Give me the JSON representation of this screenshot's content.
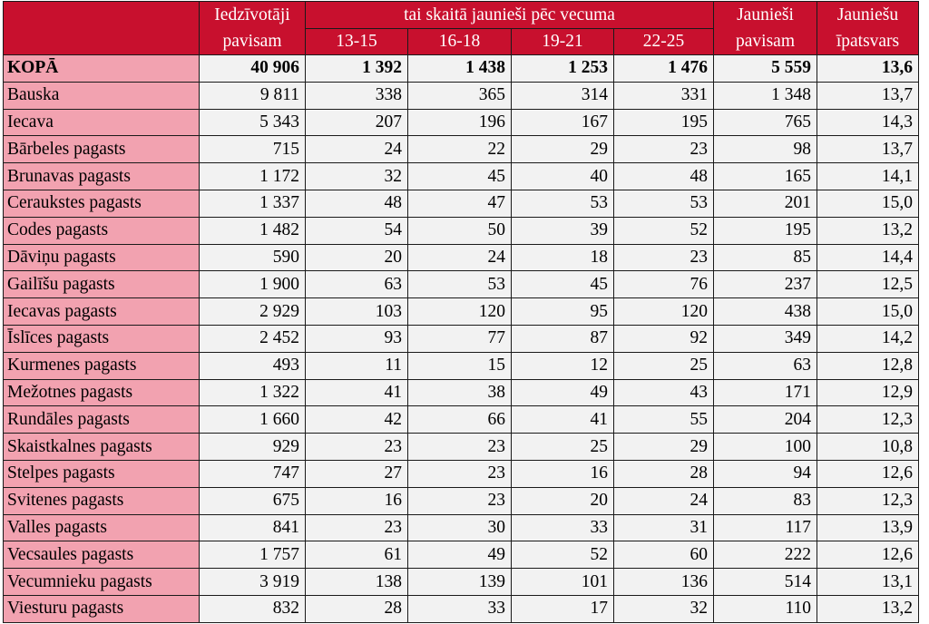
{
  "header": {
    "col_population": [
      "Iedzīvotāji",
      "pavisam"
    ],
    "group_label": "tai skaitā jaunieši pēc vecuma",
    "age_groups": [
      "13-15",
      "16-18",
      "19-21",
      "22-25"
    ],
    "col_youth_total": [
      "Jaunieši",
      "pavisam"
    ],
    "col_youth_share": [
      "Jauniešu",
      "īpatsvars"
    ]
  },
  "total_row": [
    "KOPĀ",
    "40 906",
    "1 392",
    "1 438",
    "1 253",
    "1 476",
    "5 559",
    "13,6"
  ],
  "rows": [
    [
      "Bauska",
      "9 811",
      "338",
      "365",
      "314",
      "331",
      "1 348",
      "13,7"
    ],
    [
      "Iecava",
      "5 343",
      "207",
      "196",
      "167",
      "195",
      "765",
      "14,3"
    ],
    [
      "Bārbeles pagasts",
      "715",
      "24",
      "22",
      "29",
      "23",
      "98",
      "13,7"
    ],
    [
      "Brunavas pagasts",
      "1 172",
      "32",
      "45",
      "40",
      "48",
      "165",
      "14,1"
    ],
    [
      "Ceraukstes pagasts",
      "1 337",
      "48",
      "47",
      "53",
      "53",
      "201",
      "15,0"
    ],
    [
      "Codes pagasts",
      "1 482",
      "54",
      "50",
      "39",
      "52",
      "195",
      "13,2"
    ],
    [
      "Dāviņu pagasts",
      "590",
      "20",
      "24",
      "18",
      "23",
      "85",
      "14,4"
    ],
    [
      "Gailīšu pagasts",
      "1 900",
      "63",
      "53",
      "45",
      "76",
      "237",
      "12,5"
    ],
    [
      "Iecavas pagasts",
      "2 929",
      "103",
      "120",
      "95",
      "120",
      "438",
      "15,0"
    ],
    [
      "Īslīces pagasts",
      "2 452",
      "93",
      "77",
      "87",
      "92",
      "349",
      "14,2"
    ],
    [
      "Kurmenes pagasts",
      "493",
      "11",
      "15",
      "12",
      "25",
      "63",
      "12,8"
    ],
    [
      "Mežotnes pagasts",
      "1 322",
      "41",
      "38",
      "49",
      "43",
      "171",
      "12,9"
    ],
    [
      "Rundāles pagasts",
      "1 660",
      "42",
      "66",
      "41",
      "55",
      "204",
      "12,3"
    ],
    [
      "Skaistkalnes pagasts",
      "929",
      "23",
      "23",
      "25",
      "29",
      "100",
      "10,8"
    ],
    [
      "Stelpes pagasts",
      "747",
      "27",
      "23",
      "16",
      "28",
      "94",
      "12,6"
    ],
    [
      "Svitenes pagasts",
      "675",
      "16",
      "23",
      "20",
      "24",
      "83",
      "12,3"
    ],
    [
      "Valles pagasts",
      "841",
      "23",
      "30",
      "33",
      "31",
      "117",
      "13,9"
    ],
    [
      "Vecsaules pagasts",
      "1 757",
      "61",
      "49",
      "52",
      "60",
      "222",
      "12,6"
    ],
    [
      "Vecumnieku pagasts",
      "3 919",
      "138",
      "139",
      "101",
      "136",
      "514",
      "13,1"
    ],
    [
      "Viesturu pagasts",
      "832",
      "28",
      "33",
      "17",
      "32",
      "110",
      "13,2"
    ]
  ],
  "colors": {
    "header_red": "#c8102e",
    "name_pink": "#f2a2b0",
    "cell_gray": "#f2f2f2"
  }
}
